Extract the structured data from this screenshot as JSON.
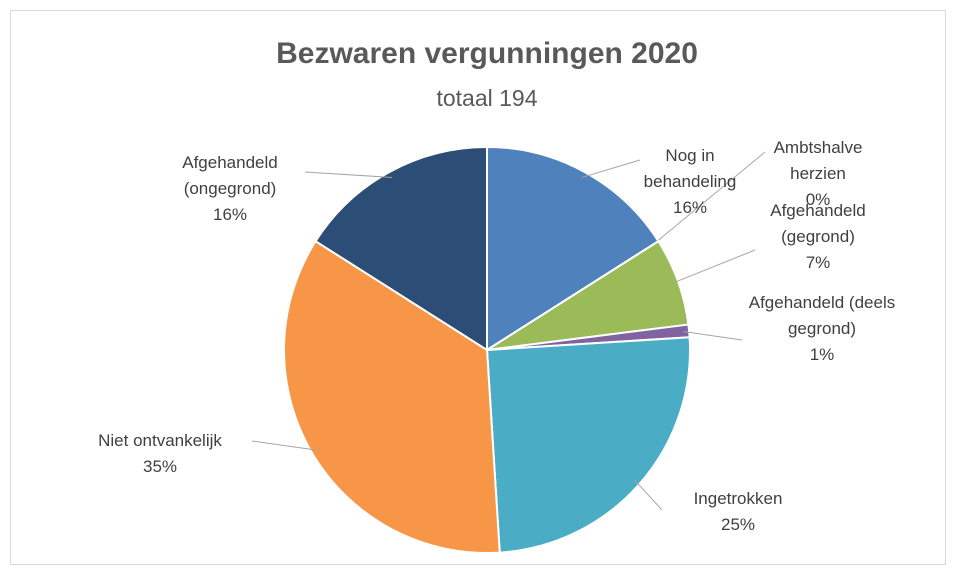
{
  "chart_data": {
    "type": "pie",
    "title": "Bezwaren vergunningen 2020",
    "subtitle": "totaal 194",
    "categories": [
      "Nog in behandeling",
      "Ambtshalve herzien",
      "Afgehandeld (gegrond)",
      "Afgehandeld (deels gegrond)",
      "Ingetrokken",
      "Niet ontvankelijk",
      "Afgehandeld (ongegrond)"
    ],
    "values": [
      16,
      0,
      7,
      1,
      25,
      35,
      16
    ],
    "value_labels": [
      "16%",
      "0%",
      "7%",
      "1%",
      "25%",
      "35%",
      "16%"
    ],
    "colors": [
      "#4f81bd",
      "#c0504d",
      "#9bbb59",
      "#8064a2",
      "#4bacc6",
      "#f79646",
      "#2c4d75"
    ]
  }
}
